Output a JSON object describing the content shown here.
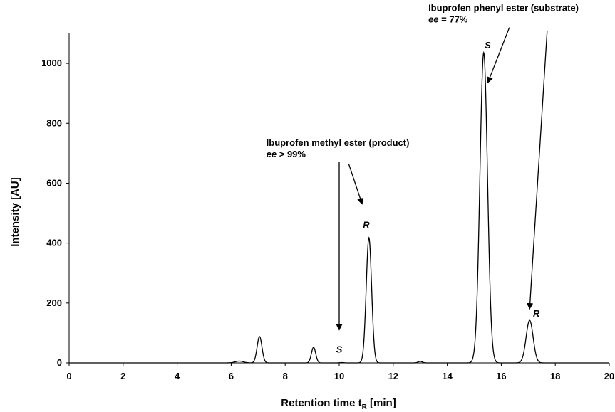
{
  "chart_data": {
    "type": "line",
    "xlabel": "Retention time t",
    "xlabel_subscript": "R",
    "xlabel_unit": " [min]",
    "ylabel": "Intensity [AU]",
    "xlim": [
      0,
      20
    ],
    "ylim": [
      0,
      1100
    ],
    "xticks": [
      0,
      2,
      4,
      6,
      8,
      10,
      12,
      14,
      16,
      18,
      20
    ],
    "yticks": [
      0,
      200,
      400,
      600,
      800,
      1000
    ],
    "grid": false,
    "line_color": "#000000",
    "peaks": [
      {
        "center": 6.3,
        "height": 6,
        "width": 0.15
      },
      {
        "center": 7.05,
        "height": 88,
        "width": 0.09
      },
      {
        "center": 9.05,
        "height": 52,
        "width": 0.08
      },
      {
        "center": 10.1,
        "height": 1,
        "width": 0.08
      },
      {
        "center": 11.1,
        "height": 418,
        "width": 0.1
      },
      {
        "center": 13.0,
        "height": 5,
        "width": 0.08
      },
      {
        "center": 15.35,
        "height": 1036,
        "width": 0.14
      },
      {
        "center": 17.05,
        "height": 142,
        "width": 0.13
      }
    ],
    "peak_labels": [
      {
        "text": "S",
        "x": 10.0,
        "y": 35
      },
      {
        "text": "R",
        "x": 11.0,
        "y": 450
      },
      {
        "text": "S",
        "x": 15.5,
        "y": 1050
      },
      {
        "text": "R",
        "x": 17.3,
        "y": 155
      }
    ],
    "annotations": [
      {
        "line1": "Ibuprofen methyl ester (product)",
        "line2_italic": "ee",
        "line2_rest": " > 99%",
        "x": 7.3,
        "y": 725
      },
      {
        "line1": "Ibuprofen phenyl ester (substrate)",
        "line2_italic": "ee",
        "line2_rest": " = 77%",
        "x": 13.3,
        "y": 1175
      }
    ],
    "arrows": [
      {
        "x1": 10.0,
        "y1": 670,
        "x2": 10.0,
        "y2": 110
      },
      {
        "x1": 10.35,
        "y1": 665,
        "x2": 10.85,
        "y2": 530
      },
      {
        "x1": 16.3,
        "y1": 1120,
        "x2": 15.5,
        "y2": 935
      },
      {
        "x1": 17.7,
        "y1": 1110,
        "x2": 17.05,
        "y2": 180
      }
    ]
  }
}
